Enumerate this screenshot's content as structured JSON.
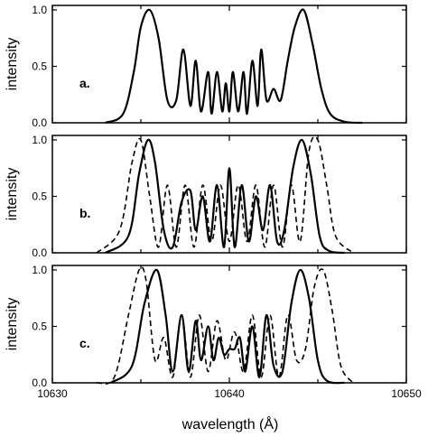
{
  "chart_data": [
    {
      "type": "line",
      "panel_label": "a.",
      "ylabel": "intensity",
      "xlim": [
        10630,
        10650
      ],
      "ylim": [
        0,
        1
      ],
      "yticks": [
        "0.0",
        "0.5",
        "1.0"
      ],
      "series": [
        {
          "style": "solid",
          "x": [
            10633.0,
            10634.0,
            10634.6,
            10635.0,
            10635.5,
            10636.0,
            10636.5,
            10637.0,
            10637.4,
            10637.8,
            10638.1,
            10638.4,
            10638.8,
            10639.0,
            10639.3,
            10639.6,
            10639.8,
            10640.0,
            10640.2,
            10640.5,
            10640.8,
            10641.0,
            10641.3,
            10641.6,
            10641.8,
            10642.1,
            10642.5,
            10642.9,
            10643.3,
            10643.7,
            10644.2,
            10644.7,
            10645.2,
            10645.7,
            10646.5,
            10647.5
          ],
          "y": [
            0.0,
            0.08,
            0.45,
            0.85,
            1.0,
            0.75,
            0.2,
            0.2,
            0.65,
            0.15,
            0.55,
            0.1,
            0.45,
            0.08,
            0.45,
            0.1,
            0.35,
            0.1,
            0.45,
            0.1,
            0.45,
            0.08,
            0.55,
            0.15,
            0.65,
            0.2,
            0.3,
            0.2,
            0.55,
            0.85,
            1.0,
            0.7,
            0.3,
            0.08,
            0.01,
            0.0
          ]
        }
      ]
    },
    {
      "type": "line",
      "panel_label": "b.",
      "ylabel": "intensity",
      "xlim": [
        10630,
        10650
      ],
      "ylim": [
        0,
        1
      ],
      "yticks": [
        "0.0",
        "0.5",
        "1.0"
      ],
      "series": [
        {
          "style": "solid",
          "x": [
            10633.0,
            10634.3,
            10634.9,
            10635.4,
            10635.8,
            10636.3,
            10636.8,
            10637.3,
            10637.8,
            10638.1,
            10638.5,
            10638.9,
            10639.3,
            10639.7,
            10640.0,
            10640.3,
            10640.7,
            10641.1,
            10641.5,
            10641.9,
            10642.3,
            10642.7,
            10643.1,
            10643.6,
            10644.1,
            10644.6,
            10645.1,
            10645.6,
            10646.5
          ],
          "y": [
            0.0,
            0.15,
            0.7,
            1.0,
            0.8,
            0.2,
            0.05,
            0.45,
            0.55,
            0.2,
            0.5,
            0.1,
            0.6,
            0.05,
            0.75,
            0.05,
            0.6,
            0.1,
            0.5,
            0.2,
            0.6,
            0.1,
            0.2,
            0.75,
            1.0,
            0.7,
            0.15,
            0.02,
            0.0
          ]
        },
        {
          "style": "dashed",
          "x": [
            10632.5,
            10633.8,
            10634.5,
            10635.0,
            10635.5,
            10636.0,
            10636.5,
            10637.0,
            10637.5,
            10638.0,
            10638.5,
            10639.0,
            10639.5,
            10640.0,
            10640.5,
            10641.0,
            10641.5,
            10642.0,
            10642.5,
            10643.0,
            10643.5,
            10644.0,
            10644.5,
            10645.0,
            10645.5,
            10646.0,
            10647.0
          ],
          "y": [
            0.0,
            0.2,
            0.8,
            1.0,
            0.5,
            0.05,
            0.6,
            0.05,
            0.6,
            0.05,
            0.6,
            0.1,
            0.6,
            0.1,
            0.6,
            0.1,
            0.6,
            0.05,
            0.6,
            0.05,
            0.6,
            0.1,
            0.9,
            1.0,
            0.6,
            0.15,
            0.0
          ]
        }
      ]
    },
    {
      "type": "line",
      "panel_label": "c.",
      "ylabel": "intensity",
      "xlabel": "wavelength (Å)",
      "xlim": [
        10630,
        10650
      ],
      "ylim": [
        0,
        1
      ],
      "xticks": [
        "10630",
        "10640",
        "10650"
      ],
      "yticks": [
        "0.0",
        "0.5",
        "1.0"
      ],
      "series": [
        {
          "style": "solid",
          "x": [
            10633.3,
            10634.5,
            10635.2,
            10635.9,
            10636.4,
            10636.8,
            10637.3,
            10637.7,
            10638.1,
            10638.4,
            10638.8,
            10639.1,
            10639.4,
            10639.7,
            10640.0,
            10640.3,
            10640.6,
            10640.9,
            10641.3,
            10641.7,
            10642.1,
            10642.5,
            10643.0,
            10643.5,
            10644.0,
            10644.5,
            10645.0,
            10645.5,
            10646.5
          ],
          "y": [
            0.0,
            0.15,
            0.7,
            1.0,
            0.6,
            0.1,
            0.6,
            0.1,
            0.55,
            0.2,
            0.5,
            0.2,
            0.4,
            0.25,
            0.3,
            0.3,
            0.4,
            0.1,
            0.5,
            0.05,
            0.6,
            0.15,
            0.1,
            0.7,
            1.0,
            0.75,
            0.2,
            0.02,
            0.0
          ]
        },
        {
          "style": "dashed",
          "x": [
            10632.5,
            10633.5,
            10634.3,
            10634.9,
            10635.3,
            10635.8,
            10636.3,
            10636.8,
            10637.3,
            10637.8,
            10638.3,
            10638.8,
            10639.3,
            10639.8,
            10640.3,
            10640.8,
            10641.3,
            10641.8,
            10642.3,
            10642.8,
            10643.3,
            10643.8,
            10644.3,
            10644.8,
            10645.3,
            10645.8,
            10646.3,
            10647.0
          ],
          "y": [
            0.0,
            0.05,
            0.6,
            1.0,
            0.9,
            0.2,
            0.4,
            0.05,
            0.6,
            0.05,
            0.6,
            0.1,
            0.55,
            0.2,
            0.45,
            0.1,
            0.6,
            0.05,
            0.6,
            0.05,
            0.6,
            0.2,
            0.3,
            0.85,
            1.0,
            0.65,
            0.15,
            0.0
          ]
        }
      ]
    }
  ]
}
